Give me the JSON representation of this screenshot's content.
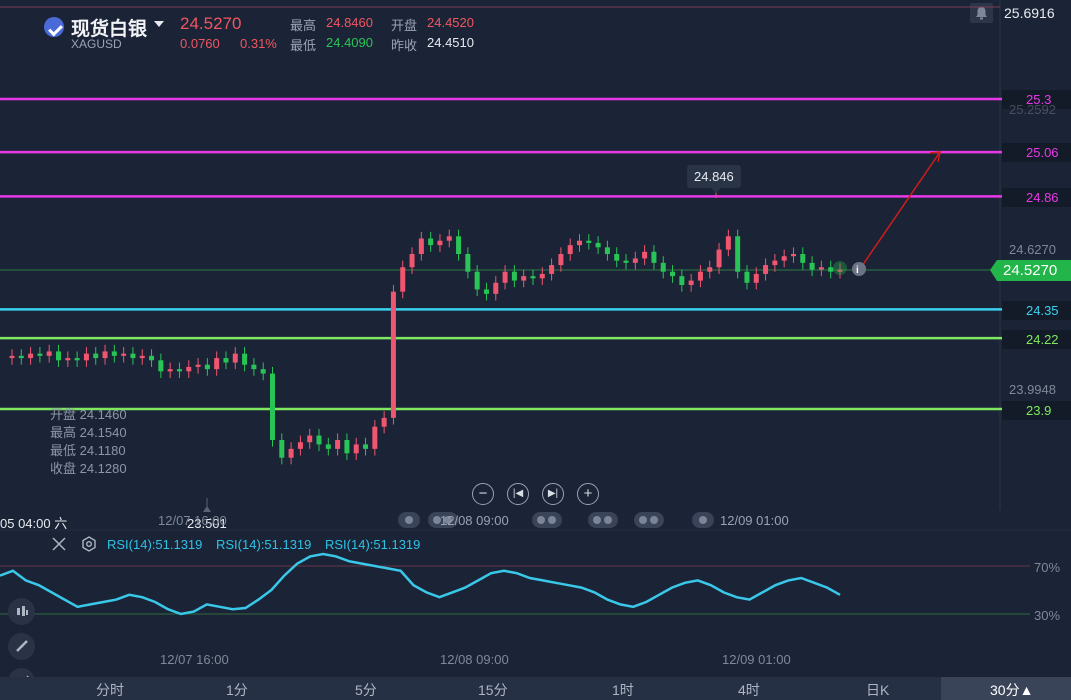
{
  "header": {
    "title": "现货白银",
    "code": "XAGUSD",
    "price": "24.5270",
    "change": "0.0760",
    "change_pct": "0.31%",
    "high_label": "最高",
    "high": "24.8460",
    "open_label": "开盘",
    "open": "24.4520",
    "low_label": "最低",
    "low": "24.4090",
    "prev_label": "昨收",
    "prev": "24.4510"
  },
  "axis": {
    "top_price": "25.6916",
    "mid_high": "24.6270",
    "mid_low": "23.9948",
    "faded": "25.2592"
  },
  "lines": [
    {
      "label": "25.3",
      "color": "#e838e8"
    },
    {
      "label": "25.06",
      "color": "#e838e8"
    },
    {
      "label": "24.86",
      "color": "#e838e8"
    },
    {
      "label": "24.35",
      "color": "#3ad1f0"
    },
    {
      "label": "24.22",
      "color": "#7de860"
    },
    {
      "label": "23.9",
      "color": "#7de860"
    }
  ],
  "last_price_tag": "24.5270",
  "hover_high": "24.846",
  "low_marker": "23.501",
  "ohlc_panel": {
    "open": "开盘 24.1460",
    "high": "最高 24.1540",
    "low": "最低 24.1180",
    "close": "收盘 24.1280"
  },
  "time_axis": {
    "left_label": "05 04:00 六",
    "t1": "12/07 16:00",
    "t2": "12/08 09:00",
    "t3": "12/09 01:00"
  },
  "rsi": {
    "labels": [
      "RSI(14):51.1319",
      "RSI(14):51.1319",
      "RSI(14):51.1319"
    ],
    "upper": "70%",
    "lower": "30%"
  },
  "bottom_bar": {
    "items": [
      "分时",
      "1分",
      "5分",
      "15分",
      "1时",
      "4时",
      "日K",
      "30分▲"
    ]
  },
  "chart_data": {
    "type": "candlestick",
    "series": [
      {
        "o": 24.13,
        "c": 24.14
      },
      {
        "o": 24.14,
        "c": 24.13
      },
      {
        "o": 24.13,
        "c": 24.15
      },
      {
        "o": 24.15,
        "c": 24.14
      },
      {
        "o": 24.14,
        "c": 24.16
      },
      {
        "o": 24.16,
        "c": 24.12
      },
      {
        "o": 24.12,
        "c": 24.13
      },
      {
        "o": 24.13,
        "c": 24.12
      },
      {
        "o": 24.12,
        "c": 24.15
      },
      {
        "o": 24.15,
        "c": 24.13
      },
      {
        "o": 24.13,
        "c": 24.16
      },
      {
        "o": 24.16,
        "c": 24.14
      },
      {
        "o": 24.14,
        "c": 24.15
      },
      {
        "o": 24.15,
        "c": 24.13
      },
      {
        "o": 24.13,
        "c": 24.14
      },
      {
        "o": 24.14,
        "c": 24.12
      },
      {
        "o": 24.12,
        "c": 24.07
      },
      {
        "o": 24.07,
        "c": 24.08
      },
      {
        "o": 24.08,
        "c": 24.07
      },
      {
        "o": 24.07,
        "c": 24.09
      },
      {
        "o": 24.09,
        "c": 24.1
      },
      {
        "o": 24.1,
        "c": 24.08
      },
      {
        "o": 24.08,
        "c": 24.13
      },
      {
        "o": 24.13,
        "c": 24.11
      },
      {
        "o": 24.11,
        "c": 24.15
      },
      {
        "o": 24.15,
        "c": 24.1
      },
      {
        "o": 24.1,
        "c": 24.08
      },
      {
        "o": 24.08,
        "c": 24.06
      },
      {
        "o": 24.06,
        "c": 23.76
      },
      {
        "o": 23.76,
        "c": 23.68
      },
      {
        "o": 23.68,
        "c": 23.72
      },
      {
        "o": 23.72,
        "c": 23.75
      },
      {
        "o": 23.75,
        "c": 23.78
      },
      {
        "o": 23.78,
        "c": 23.74
      },
      {
        "o": 23.74,
        "c": 23.72
      },
      {
        "o": 23.72,
        "c": 23.76
      },
      {
        "o": 23.76,
        "c": 23.7
      },
      {
        "o": 23.7,
        "c": 23.74
      },
      {
        "o": 23.74,
        "c": 23.72
      },
      {
        "o": 23.72,
        "c": 23.82
      },
      {
        "o": 23.82,
        "c": 23.86
      },
      {
        "o": 23.86,
        "c": 24.43
      },
      {
        "o": 24.43,
        "c": 24.54
      },
      {
        "o": 24.54,
        "c": 24.6
      },
      {
        "o": 24.6,
        "c": 24.67
      },
      {
        "o": 24.67,
        "c": 24.64
      },
      {
        "o": 24.64,
        "c": 24.66
      },
      {
        "o": 24.66,
        "c": 24.68
      },
      {
        "o": 24.68,
        "c": 24.6
      },
      {
        "o": 24.6,
        "c": 24.52
      },
      {
        "o": 24.52,
        "c": 24.44
      },
      {
        "o": 24.44,
        "c": 24.42
      },
      {
        "o": 24.42,
        "c": 24.47
      },
      {
        "o": 24.47,
        "c": 24.52
      },
      {
        "o": 24.52,
        "c": 24.48
      },
      {
        "o": 24.48,
        "c": 24.5
      },
      {
        "o": 24.5,
        "c": 24.49
      },
      {
        "o": 24.49,
        "c": 24.51
      },
      {
        "o": 24.51,
        "c": 24.55
      },
      {
        "o": 24.55,
        "c": 24.6
      },
      {
        "o": 24.6,
        "c": 24.64
      },
      {
        "o": 24.64,
        "c": 24.66
      },
      {
        "o": 24.66,
        "c": 24.65
      },
      {
        "o": 24.65,
        "c": 24.63
      },
      {
        "o": 24.63,
        "c": 24.6
      },
      {
        "o": 24.6,
        "c": 24.57
      },
      {
        "o": 24.57,
        "c": 24.56
      },
      {
        "o": 24.56,
        "c": 24.58
      },
      {
        "o": 24.58,
        "c": 24.61
      },
      {
        "o": 24.61,
        "c": 24.56
      },
      {
        "o": 24.56,
        "c": 24.52
      },
      {
        "o": 24.52,
        "c": 24.5
      },
      {
        "o": 24.5,
        "c": 24.46
      },
      {
        "o": 24.46,
        "c": 24.48
      },
      {
        "o": 24.48,
        "c": 24.52
      },
      {
        "o": 24.52,
        "c": 24.54
      },
      {
        "o": 24.54,
        "c": 24.62
      },
      {
        "o": 24.62,
        "c": 24.68
      },
      {
        "o": 24.68,
        "c": 24.52
      },
      {
        "o": 24.52,
        "c": 24.47
      },
      {
        "o": 24.47,
        "c": 24.51
      },
      {
        "o": 24.51,
        "c": 24.55
      },
      {
        "o": 24.55,
        "c": 24.57
      },
      {
        "o": 24.57,
        "c": 24.59
      },
      {
        "o": 24.59,
        "c": 24.6
      },
      {
        "o": 24.6,
        "c": 24.56
      },
      {
        "o": 24.56,
        "c": 24.53
      },
      {
        "o": 24.53,
        "c": 24.54
      },
      {
        "o": 24.54,
        "c": 24.52
      },
      {
        "o": 24.52,
        "c": 24.53
      }
    ],
    "rsi": [
      62,
      66,
      58,
      54,
      48,
      42,
      36,
      38,
      40,
      42,
      46,
      44,
      40,
      34,
      30,
      32,
      38,
      36,
      34,
      35,
      42,
      50,
      62,
      72,
      78,
      80,
      78,
      74,
      72,
      70,
      68,
      66,
      54,
      48,
      44,
      48,
      52,
      58,
      64,
      66,
      64,
      60,
      58,
      56,
      54,
      52,
      48,
      42,
      38,
      36,
      40,
      46,
      52,
      56,
      58,
      54,
      48,
      44,
      42,
      48,
      54,
      58,
      60,
      56,
      52,
      46
    ]
  }
}
